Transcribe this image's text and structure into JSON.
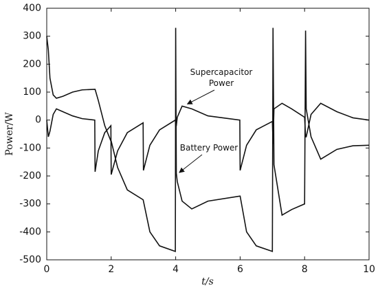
{
  "chart_data": {
    "type": "line",
    "xlabel": "t/s",
    "ylabel": "Power/W",
    "x": [
      0,
      0.05,
      0.1,
      0.2,
      0.3,
      0.5,
      0.8,
      1.1,
      1.49,
      1.5,
      1.6,
      1.8,
      1.99,
      2.0,
      2.2,
      2.5,
      2.99,
      3.0,
      3.2,
      3.5,
      3.99,
      4.0,
      4.02,
      4.05,
      4.2,
      4.5,
      5.0,
      5.99,
      6.0,
      6.2,
      6.5,
      7.0,
      7.02,
      7.05,
      7.3,
      7.6,
      8.0,
      8.03,
      8.05,
      8.2,
      8.5,
      9.0,
      9.5,
      10
    ],
    "series": [
      {
        "color": "#111111",
        "values": [
          300,
          250,
          150,
          90,
          78,
          85,
          100,
          108,
          110,
          110,
          70,
          -20,
          -75,
          -75,
          -170,
          -250,
          -285,
          -290,
          -400,
          -450,
          -470,
          330,
          -190,
          -220,
          -290,
          -318,
          -290,
          -272,
          -272,
          -400,
          -450,
          -470,
          330,
          -160,
          -340,
          -320,
          -300,
          320,
          40,
          -60,
          -140,
          -105,
          -92,
          -90
        ]
      },
      {
        "color": "#111111",
        "values": [
          0,
          -60,
          -40,
          20,
          40,
          30,
          15,
          5,
          0,
          -185,
          -110,
          -45,
          -20,
          -195,
          -110,
          -45,
          -10,
          -180,
          -90,
          -35,
          0,
          -20,
          -20,
          10,
          50,
          40,
          15,
          0,
          -180,
          -90,
          -35,
          -5,
          -85,
          40,
          60,
          40,
          10,
          -60,
          -60,
          20,
          60,
          30,
          8,
          0
        ]
      }
    ],
    "annotations": [
      {
        "lines": [
          "Supercapacitor",
          "Power"
        ],
        "x": 4.3,
        "y": 50
      },
      {
        "lines": [
          "Battery Power"
        ],
        "x": 4.05,
        "y": -195
      }
    ],
    "xlim": [
      0,
      10
    ],
    "xticks": [
      0,
      2,
      4,
      6,
      8,
      10
    ],
    "ylim": [
      -500,
      400
    ],
    "yticks": [
      -500,
      -400,
      -300,
      -200,
      -100,
      0,
      100,
      200,
      300,
      400
    ]
  }
}
